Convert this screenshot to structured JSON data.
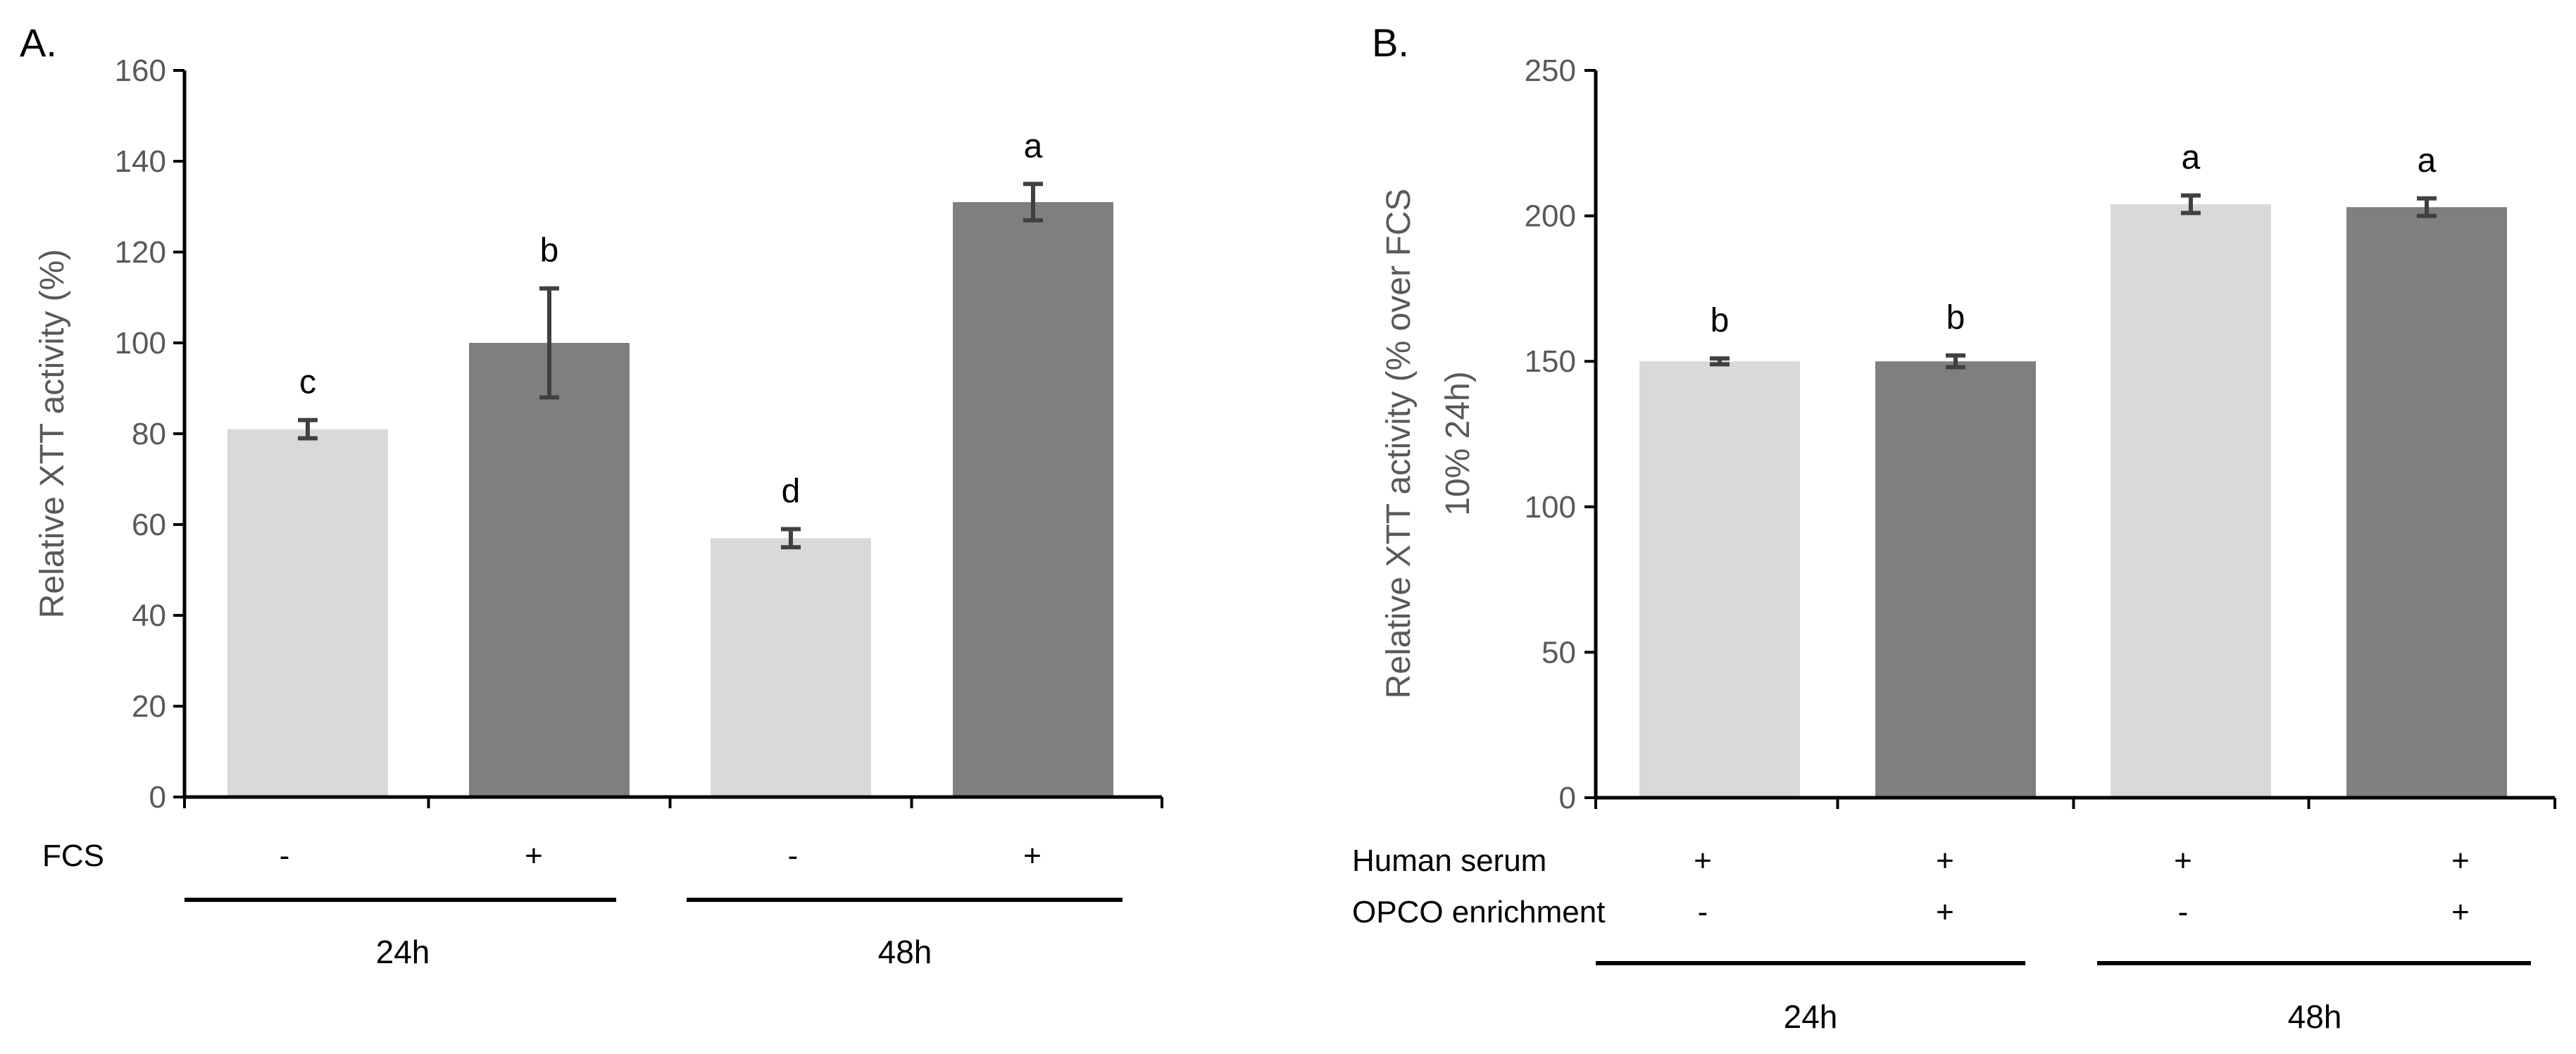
{
  "chart_data": [
    {
      "panel": "A.",
      "type": "bar",
      "title": "",
      "ylabel": "Relative XTT activity (%)",
      "ylim": [
        0,
        160
      ],
      "yticks": [
        0,
        20,
        40,
        60,
        80,
        100,
        120,
        140,
        160
      ],
      "bars": [
        {
          "value": 81,
          "error": 2,
          "letter": "c",
          "color": "#d9d9d9"
        },
        {
          "value": 100,
          "error": 12,
          "letter": "b",
          "color": "#7f7f7f"
        },
        {
          "value": 57,
          "error": 2,
          "letter": "d",
          "color": "#d9d9d9"
        },
        {
          "value": 131,
          "error": 4,
          "letter": "a",
          "color": "#7f7f7f"
        }
      ],
      "condition_rows": [
        {
          "label": "FCS",
          "values": [
            "-",
            "+",
            "-",
            "+"
          ]
        }
      ],
      "groups": [
        "24h",
        "48h"
      ]
    },
    {
      "panel": "B.",
      "type": "bar",
      "title": "",
      "ylabel_lines": [
        "Relative XTT activity (% over FCS",
        "10% 24h)"
      ],
      "ylim": [
        0,
        250
      ],
      "yticks": [
        0,
        50,
        100,
        150,
        200,
        250
      ],
      "bars": [
        {
          "value": 150,
          "error": 1,
          "letter": "b",
          "color": "#d9d9d9"
        },
        {
          "value": 150,
          "error": 2,
          "letter": "b",
          "color": "#7f7f7f"
        },
        {
          "value": 204,
          "error": 3,
          "letter": "a",
          "color": "#d9d9d9"
        },
        {
          "value": 203,
          "error": 3,
          "letter": "a",
          "color": "#7f7f7f"
        }
      ],
      "condition_rows": [
        {
          "label": "Human serum",
          "values": [
            "+",
            "+",
            "+",
            "+"
          ]
        },
        {
          "label": "OPCO enrichment",
          "values": [
            "-",
            "+",
            "-",
            "+"
          ]
        }
      ],
      "groups": [
        "24h",
        "48h"
      ]
    }
  ]
}
